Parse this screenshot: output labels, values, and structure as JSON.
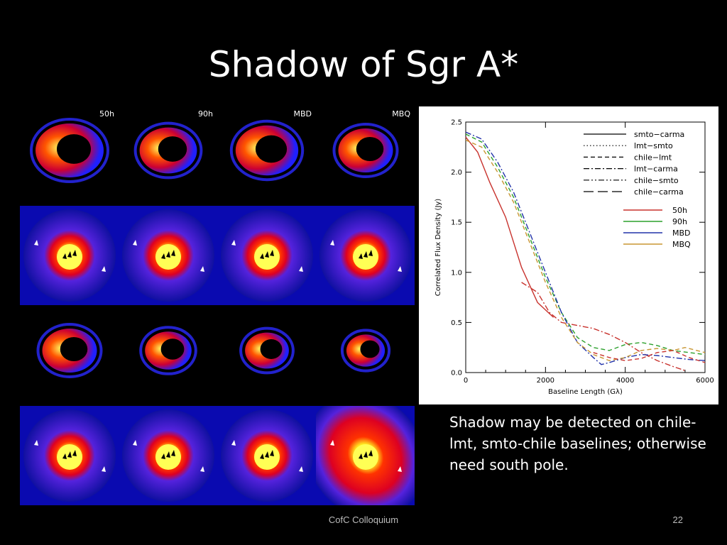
{
  "slide": {
    "title": "Shadow of Sgr A*",
    "caption": "Shadow may be detected on chile-lmt, smto-chile baselines; otherwise need south pole.",
    "footer": "CofC Colloquium",
    "page_number": "22"
  },
  "image_grid": {
    "column_labels": [
      "50h",
      "90h",
      "MBD",
      "MBQ"
    ]
  },
  "chart_data": {
    "type": "line",
    "title": "",
    "xlabel": "Baseline Length (Gλ)",
    "ylabel": "Correlated Flux Density (Jy)",
    "xlim": [
      0,
      6000
    ],
    "ylim": [
      0,
      2.5
    ],
    "xticks": [
      0,
      2000,
      4000,
      6000
    ],
    "yticks": [
      0.0,
      0.5,
      1.0,
      1.5,
      2.0,
      2.5
    ],
    "grid": false,
    "baseline_legend": {
      "placement": "top-right",
      "entries": [
        {
          "name": "smto−carma",
          "dash": "solid"
        },
        {
          "name": "lmt−smto",
          "dash": "dotted"
        },
        {
          "name": "chile−lmt",
          "dash": "dashed"
        },
        {
          "name": "lmt−carma",
          "dash": "dash-dot"
        },
        {
          "name": "chile−smto",
          "dash": "dash-dot-dot"
        },
        {
          "name": "chile−carma",
          "dash": "long-dash"
        }
      ]
    },
    "model_legend": {
      "placement": "right",
      "entries": [
        {
          "name": "50h",
          "color": "#c8322d"
        },
        {
          "name": "90h",
          "color": "#2ca02c"
        },
        {
          "name": "MBD",
          "color": "#2233aa"
        },
        {
          "name": "MBQ",
          "color": "#c89632"
        }
      ]
    },
    "series": [
      {
        "model": "50h",
        "color": "#c8322d",
        "dash": "solid",
        "x": [
          0,
          300,
          600,
          1000,
          1400,
          1800,
          2200
        ],
        "y": [
          2.35,
          2.2,
          1.9,
          1.55,
          1.05,
          0.7,
          0.55
        ]
      },
      {
        "model": "50h",
        "color": "#c8322d",
        "dash": "dash-dot",
        "x": [
          1400,
          1800,
          2100,
          2400,
          2800,
          3200,
          3600,
          4000,
          4400,
          4800,
          5200,
          5500
        ],
        "y": [
          0.9,
          0.8,
          0.6,
          0.5,
          0.47,
          0.44,
          0.38,
          0.3,
          0.2,
          0.12,
          0.06,
          0.02
        ]
      },
      {
        "model": "90h",
        "color": "#2ca02c",
        "dash": "dashed",
        "x": [
          0,
          400,
          800,
          1200,
          1600,
          2000,
          2400,
          2800,
          3200,
          3600,
          4000,
          4400,
          4800,
          5200,
          5600,
          6000
        ],
        "y": [
          2.38,
          2.3,
          2.05,
          1.75,
          1.35,
          0.95,
          0.6,
          0.35,
          0.25,
          0.22,
          0.28,
          0.3,
          0.27,
          0.22,
          0.2,
          0.18
        ]
      },
      {
        "model": "MBD",
        "color": "#2233aa",
        "dash": "dash-dot",
        "x": [
          0,
          400,
          800,
          1200,
          1600,
          2000,
          2400,
          2800,
          3200,
          3400,
          3600,
          4000,
          4400,
          4800,
          5200,
          5600,
          6000
        ],
        "y": [
          2.4,
          2.33,
          2.1,
          1.8,
          1.4,
          1.0,
          0.6,
          0.3,
          0.15,
          0.08,
          0.1,
          0.15,
          0.18,
          0.17,
          0.15,
          0.13,
          0.12
        ]
      },
      {
        "model": "MBQ",
        "color": "#c89632",
        "dash": "dashed",
        "x": [
          0,
          400,
          800,
          1200,
          1600,
          2000,
          2400,
          2800,
          3200,
          3600,
          4000,
          4400,
          4800,
          5200,
          5500,
          6000
        ],
        "y": [
          2.32,
          2.25,
          2.0,
          1.7,
          1.3,
          0.9,
          0.55,
          0.3,
          0.18,
          0.12,
          0.15,
          0.22,
          0.24,
          0.22,
          0.25,
          0.2
        ]
      },
      {
        "model": "50h",
        "color": "#c8322d",
        "dash": "dashed",
        "x": [
          3200,
          3600,
          4000,
          4400,
          4800,
          5200,
          5600,
          6000
        ],
        "y": [
          0.2,
          0.15,
          0.12,
          0.14,
          0.2,
          0.22,
          0.15,
          0.1
        ]
      }
    ]
  }
}
